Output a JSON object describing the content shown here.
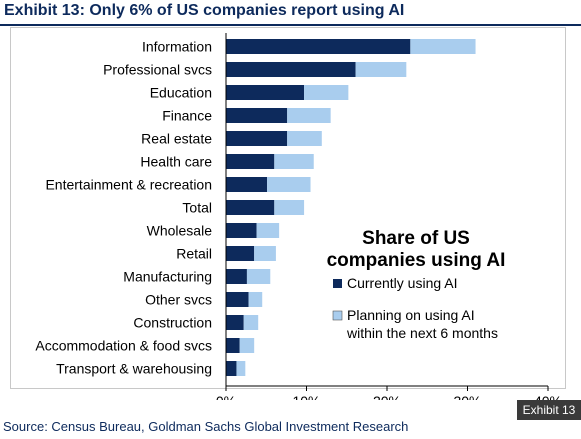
{
  "title": "Exhibit 13: Only 6% of US companies report using AI",
  "source": "Source: Census Bureau, Goldman Sachs Global Investment Research",
  "badge": "Exhibit 13",
  "colors": {
    "current": "#0d2a5c",
    "planning": "#a9cdee",
    "title": "#0d2a5c",
    "axis": "#000000"
  },
  "chart_data": {
    "type": "bar",
    "orientation": "horizontal",
    "stacked": true,
    "title": "Share of US companies using AI",
    "xlabel": "",
    "ylabel": "",
    "xlim": [
      0,
      40
    ],
    "x_ticks": [
      "0%",
      "10%",
      "20%",
      "30%",
      "40%"
    ],
    "grid": false,
    "legend_position": "right",
    "categories": [
      "Information",
      "Professional svcs",
      "Education",
      "Finance",
      "Real estate",
      "Health care",
      "Entertainment & recreation",
      "Total",
      "Wholesale",
      "Retail",
      "Manufacturing",
      "Other svcs",
      "Construction",
      "Accommodation & food svcs",
      "Transport & warehousing"
    ],
    "series": [
      {
        "name": "Currently using AI",
        "values": [
          22.9,
          16.1,
          9.7,
          7.6,
          7.6,
          6.0,
          5.1,
          6.0,
          3.8,
          3.5,
          2.6,
          2.8,
          2.2,
          1.7,
          1.3
        ]
      },
      {
        "name": "Planning on using AI within the next 6 months",
        "values": [
          8.1,
          6.3,
          5.5,
          5.4,
          4.3,
          4.9,
          5.4,
          3.7,
          2.8,
          2.7,
          2.9,
          1.7,
          1.8,
          1.8,
          1.1
        ]
      }
    ]
  }
}
